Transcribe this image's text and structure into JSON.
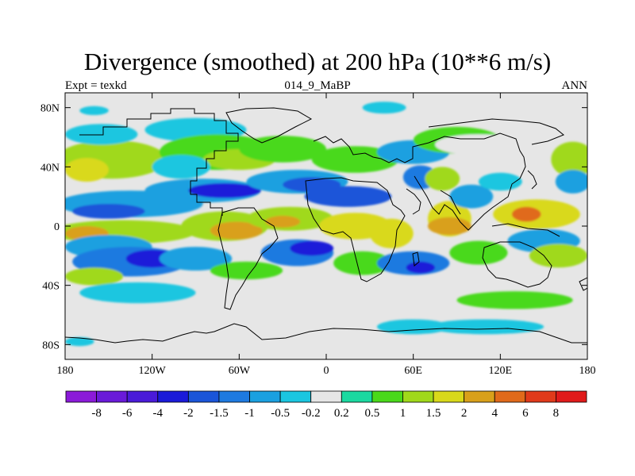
{
  "header": {
    "title": "Divergence (smoothed) at 200 hPa (10**6 m/s)",
    "left_label": "Expt = texkd",
    "center_label": "014_9_MaBP",
    "right_label": "ANN"
  },
  "chart_data": {
    "type": "heatmap",
    "title": "Divergence (smoothed) at 200 hPa (10**6 m/s)",
    "xlabel": "",
    "ylabel": "",
    "xlim": [
      -180,
      180
    ],
    "ylim": [
      -90,
      90
    ],
    "x_ticks": [
      {
        "value": -180,
        "label": "180"
      },
      {
        "value": -120,
        "label": "120W"
      },
      {
        "value": -60,
        "label": "60W"
      },
      {
        "value": 0,
        "label": "0"
      },
      {
        "value": 60,
        "label": "60E"
      },
      {
        "value": 120,
        "label": "120E"
      },
      {
        "value": 180,
        "label": "180"
      }
    ],
    "y_ticks": [
      {
        "value": 80,
        "label": "80N"
      },
      {
        "value": 40,
        "label": "40N"
      },
      {
        "value": 0,
        "label": "0"
      },
      {
        "value": -40,
        "label": "40S"
      },
      {
        "value": -80,
        "label": "80S"
      }
    ],
    "colorbar": {
      "colors": [
        "#8b1ad9",
        "#6a1ad9",
        "#4a1ad9",
        "#1a1ad9",
        "#1a55d9",
        "#1e7ae0",
        "#1aa0e0",
        "#1ac6e0",
        "#e6e6e6",
        "#1ad9a0",
        "#4ad91a",
        "#a0d91a",
        "#d9d91a",
        "#d9a01a",
        "#e06a1a",
        "#e03a1a",
        "#e01a1a"
      ],
      "labels": [
        "-8",
        "-6",
        "-4",
        "-2",
        "-1.5",
        "-1",
        "-0.5",
        "-0.2",
        "0.2",
        "0.5",
        "1",
        "1.5",
        "2",
        "4",
        "6",
        "8"
      ]
    },
    "regions": [
      {
        "lon": -148,
        "lat": 45,
        "rx": 38,
        "ry": 13,
        "value": 1.2
      },
      {
        "lon": -165,
        "lat": 38,
        "rx": 15,
        "ry": 8,
        "value": 1.7
      },
      {
        "lon": -155,
        "lat": 62,
        "rx": 25,
        "ry": 7,
        "value": -0.4
      },
      {
        "lon": -160,
        "lat": 78,
        "rx": 10,
        "ry": 3,
        "value": -0.4
      },
      {
        "lon": -135,
        "lat": 15,
        "rx": 50,
        "ry": 9,
        "value": -0.9
      },
      {
        "lon": -150,
        "lat": 10,
        "rx": 25,
        "ry": 5,
        "value": -1.7
      },
      {
        "lon": -140,
        "lat": -4,
        "rx": 50,
        "ry": 8,
        "value": 1.2
      },
      {
        "lon": -165,
        "lat": -5,
        "rx": 15,
        "ry": 5,
        "value": 3.0
      },
      {
        "lon": -150,
        "lat": -14,
        "rx": 30,
        "ry": 8,
        "value": -0.9
      },
      {
        "lon": -135,
        "lat": -24,
        "rx": 40,
        "ry": 10,
        "value": -1.2
      },
      {
        "lon": -120,
        "lat": -22,
        "rx": 18,
        "ry": 6,
        "value": -2.5
      },
      {
        "lon": -160,
        "lat": -34,
        "rx": 20,
        "ry": 6,
        "value": 1.2
      },
      {
        "lon": -130,
        "lat": -45,
        "rx": 40,
        "ry": 7,
        "value": -0.4
      },
      {
        "lon": -90,
        "lat": 65,
        "rx": 35,
        "ry": 8,
        "value": -0.4
      },
      {
        "lon": -75,
        "lat": 50,
        "rx": 40,
        "ry": 12,
        "value": 0.7
      },
      {
        "lon": -60,
        "lat": 45,
        "rx": 25,
        "ry": 7,
        "value": 1.2
      },
      {
        "lon": -100,
        "lat": 40,
        "rx": 20,
        "ry": 8,
        "value": -0.4
      },
      {
        "lon": -85,
        "lat": 24,
        "rx": 40,
        "ry": 8,
        "value": -0.9
      },
      {
        "lon": -70,
        "lat": 24,
        "rx": 25,
        "ry": 5,
        "value": -2.5
      },
      {
        "lon": -70,
        "lat": 0,
        "rx": 30,
        "ry": 10,
        "value": 1.2
      },
      {
        "lon": -62,
        "lat": -3,
        "rx": 18,
        "ry": 6,
        "value": 2.0
      },
      {
        "lon": -90,
        "lat": -22,
        "rx": 25,
        "ry": 8,
        "value": -0.9
      },
      {
        "lon": -55,
        "lat": -30,
        "rx": 25,
        "ry": 6,
        "value": 0.7
      },
      {
        "lon": -60,
        "lat": -60,
        "rx": 45,
        "ry": 7,
        "value": 0.0
      },
      {
        "lon": -30,
        "lat": 52,
        "rx": 30,
        "ry": 9,
        "value": 0.7
      },
      {
        "lon": -20,
        "lat": 30,
        "rx": 35,
        "ry": 8,
        "value": -0.9
      },
      {
        "lon": -10,
        "lat": 28,
        "rx": 20,
        "ry": 5,
        "value": -1.7
      },
      {
        "lon": -25,
        "lat": 5,
        "rx": 30,
        "ry": 8,
        "value": 1.2
      },
      {
        "lon": -30,
        "lat": 3,
        "rx": 12,
        "ry": 4,
        "value": 2.0
      },
      {
        "lon": -20,
        "lat": -18,
        "rx": 25,
        "ry": 9,
        "value": -1.2
      },
      {
        "lon": -10,
        "lat": -15,
        "rx": 15,
        "ry": 5,
        "value": -2.5
      },
      {
        "lon": 20,
        "lat": 45,
        "rx": 30,
        "ry": 9,
        "value": 0.7
      },
      {
        "lon": 15,
        "lat": 20,
        "rx": 30,
        "ry": 7,
        "value": -1.7
      },
      {
        "lon": 20,
        "lat": 0,
        "rx": 25,
        "ry": 9,
        "value": 1.5
      },
      {
        "lon": 25,
        "lat": -25,
        "rx": 20,
        "ry": 8,
        "value": 0.7
      },
      {
        "lon": 45,
        "lat": -5,
        "rx": 15,
        "ry": 10,
        "value": 1.5
      },
      {
        "lon": 60,
        "lat": -25,
        "rx": 25,
        "ry": 8,
        "value": -1.2
      },
      {
        "lon": 65,
        "lat": -28,
        "rx": 10,
        "ry": 4,
        "value": -2.5
      },
      {
        "lon": 60,
        "lat": 50,
        "rx": 25,
        "ry": 8,
        "value": -0.9
      },
      {
        "lon": 65,
        "lat": 33,
        "rx": 12,
        "ry": 8,
        "value": -1.2
      },
      {
        "lon": 85,
        "lat": 5,
        "rx": 15,
        "ry": 12,
        "value": 1.5
      },
      {
        "lon": 80,
        "lat": 32,
        "rx": 12,
        "ry": 8,
        "value": 1.2
      },
      {
        "lon": 100,
        "lat": 20,
        "rx": 15,
        "ry": 8,
        "value": -0.9
      },
      {
        "lon": 85,
        "lat": 0,
        "rx": 15,
        "ry": 6,
        "value": 3.0
      },
      {
        "lon": 90,
        "lat": 58,
        "rx": 30,
        "ry": 9,
        "value": 0.7
      },
      {
        "lon": 105,
        "lat": 55,
        "rx": 30,
        "ry": 7,
        "value": 0.0
      },
      {
        "lon": 105,
        "lat": -18,
        "rx": 20,
        "ry": 8,
        "value": 0.7
      },
      {
        "lon": 120,
        "lat": 30,
        "rx": 15,
        "ry": 6,
        "value": -0.4
      },
      {
        "lon": 145,
        "lat": 8,
        "rx": 30,
        "ry": 10,
        "value": 1.7
      },
      {
        "lon": 138,
        "lat": 8,
        "rx": 10,
        "ry": 5,
        "value": 4.0
      },
      {
        "lon": 170,
        "lat": 45,
        "rx": 15,
        "ry": 12,
        "value": 1.2
      },
      {
        "lon": 170,
        "lat": 30,
        "rx": 12,
        "ry": 8,
        "value": -0.9
      },
      {
        "lon": 150,
        "lat": -10,
        "rx": 25,
        "ry": 8,
        "value": -0.9
      },
      {
        "lon": 160,
        "lat": -20,
        "rx": 20,
        "ry": 8,
        "value": 1.2
      },
      {
        "lon": 130,
        "lat": -50,
        "rx": 40,
        "ry": 6,
        "value": 0.7
      },
      {
        "lon": 110,
        "lat": -68,
        "rx": 40,
        "ry": 5,
        "value": -0.4
      },
      {
        "lon": 60,
        "lat": -68,
        "rx": 25,
        "ry": 5,
        "value": -0.4
      },
      {
        "lon": -170,
        "lat": -78,
        "rx": 10,
        "ry": 3,
        "value": -0.4
      },
      {
        "lon": 40,
        "lat": 80,
        "rx": 15,
        "ry": 4,
        "value": -0.4
      }
    ]
  }
}
